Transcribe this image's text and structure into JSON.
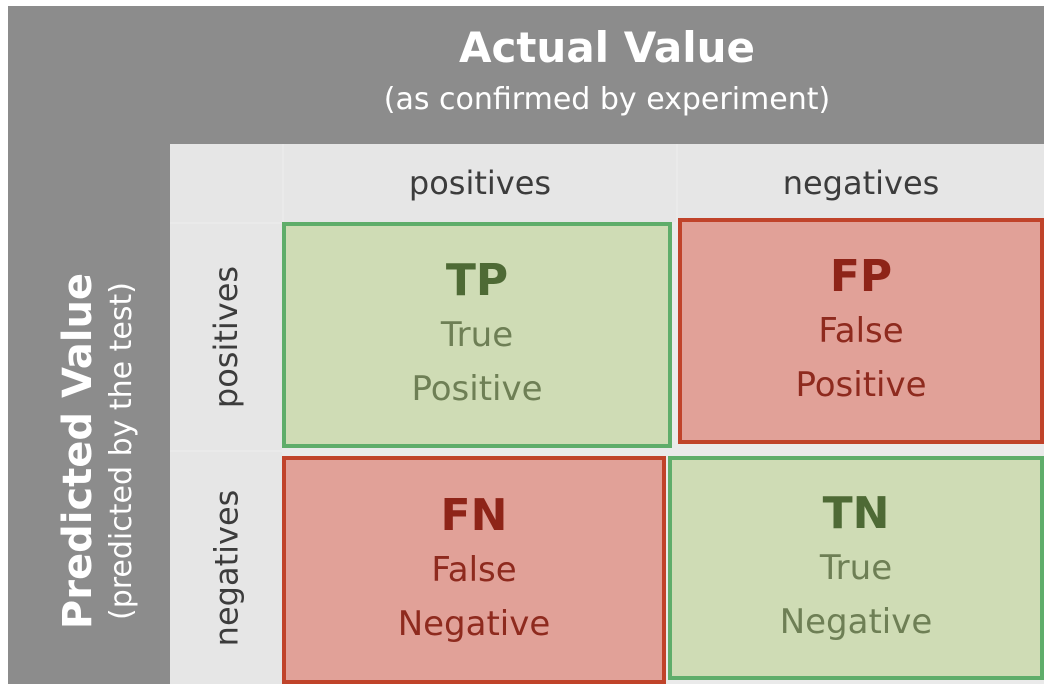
{
  "header": {
    "title": "Actual Value",
    "subtitle": "(as confirmed by experiment)"
  },
  "side": {
    "title": "Predicted Value",
    "subtitle": "(predicted by the test)"
  },
  "columns": {
    "positives": "positives",
    "negatives": "negatives"
  },
  "rows": {
    "positives": "positives",
    "negatives": "negatives"
  },
  "quadrants": {
    "tp": {
      "abbr": "TP",
      "line1": "True",
      "line2": "Positive",
      "color": "#cfdcb5",
      "border": "#5fad6a"
    },
    "fp": {
      "abbr": "FP",
      "line1": "False",
      "line2": "Positive",
      "color": "#e1a198",
      "border": "#c0432a"
    },
    "fn": {
      "abbr": "FN",
      "line1": "False",
      "line2": "Negative",
      "color": "#e1a198",
      "border": "#c0432a"
    },
    "tn": {
      "abbr": "TN",
      "line1": "True",
      "line2": "Negative",
      "color": "#cfdcb5",
      "border": "#5fad6a"
    }
  }
}
